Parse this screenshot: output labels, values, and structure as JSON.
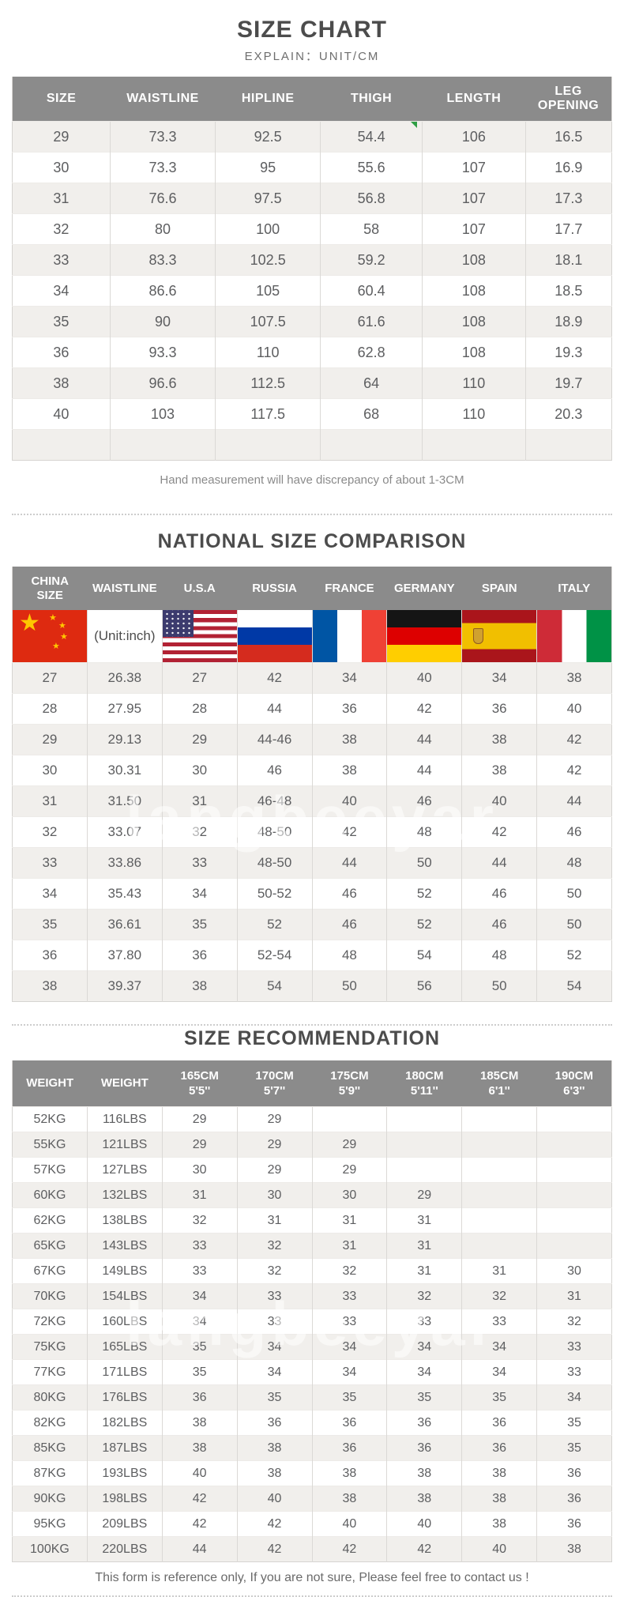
{
  "colors": {
    "header_bg": "#8b8b8b",
    "row_alt": "#f1efec",
    "marker_green": "#2f9e44",
    "title_text": "#4c4c4c"
  },
  "watermark": "langbeeyar",
  "section1": {
    "title": "SIZE CHART",
    "subtitle": "EXPLAIN：UNIT/CM",
    "columns": [
      "SIZE",
      "WAISTLINE",
      "HIPLINE",
      "THIGH",
      "LENGTH",
      "LEG OPENING"
    ],
    "rows": [
      [
        "29",
        "73.3",
        "92.5",
        "54.4",
        "106",
        "16.5"
      ],
      [
        "30",
        "73.3",
        "95",
        "55.6",
        "107",
        "16.9"
      ],
      [
        "31",
        "76.6",
        "97.5",
        "56.8",
        "107",
        "17.3"
      ],
      [
        "32",
        "80",
        "100",
        "58",
        "107",
        "17.7"
      ],
      [
        "33",
        "83.3",
        "102.5",
        "59.2",
        "108",
        "18.1"
      ],
      [
        "34",
        "86.6",
        "105",
        "60.4",
        "108",
        "18.5"
      ],
      [
        "35",
        "90",
        "107.5",
        "61.6",
        "108",
        "18.9"
      ],
      [
        "36",
        "93.3",
        "110",
        "62.8",
        "108",
        "19.3"
      ],
      [
        "38",
        "96.6",
        "112.5",
        "64",
        "110",
        "19.7"
      ],
      [
        "40",
        "103",
        "117.5",
        "68",
        "110",
        "20.3"
      ],
      [
        "",
        "",
        "",
        "",
        "",
        ""
      ]
    ],
    "marker_cell": {
      "row": 0,
      "col": 3
    },
    "footnote": "Hand measurement will have discrepancy of about 1-3CM"
  },
  "section2": {
    "title": "NATIONAL SIZE COMPARISON",
    "columns": [
      "CHINA\nSIZE",
      "WAISTLINE",
      "U.S.A",
      "RUSSIA",
      "FRANCE",
      "GERMANY",
      "SPAIN",
      "ITALY"
    ],
    "flag_row": {
      "unit_label": "(Unit:inch)",
      "cells": [
        "flag-china",
        "unit-label",
        "flag-usa",
        "flag-russia",
        "flag-france",
        "flag-germany",
        "flag-spain",
        "flag-italy"
      ]
    },
    "rows": [
      [
        "27",
        "26.38",
        "27",
        "42",
        "34",
        "40",
        "34",
        "38"
      ],
      [
        "28",
        "27.95",
        "28",
        "44",
        "36",
        "42",
        "36",
        "40"
      ],
      [
        "29",
        "29.13",
        "29",
        "44-46",
        "38",
        "44",
        "38",
        "42"
      ],
      [
        "30",
        "30.31",
        "30",
        "46",
        "38",
        "44",
        "38",
        "42"
      ],
      [
        "31",
        "31.50",
        "31",
        "46-48",
        "40",
        "46",
        "40",
        "44"
      ],
      [
        "32",
        "33.07",
        "32",
        "48-50",
        "42",
        "48",
        "42",
        "46"
      ],
      [
        "33",
        "33.86",
        "33",
        "48-50",
        "44",
        "50",
        "44",
        "48"
      ],
      [
        "34",
        "35.43",
        "34",
        "50-52",
        "46",
        "52",
        "46",
        "50"
      ],
      [
        "35",
        "36.61",
        "35",
        "52",
        "46",
        "52",
        "46",
        "50"
      ],
      [
        "36",
        "37.80",
        "36",
        "52-54",
        "48",
        "54",
        "48",
        "52"
      ],
      [
        "38",
        "39.37",
        "38",
        "54",
        "50",
        "56",
        "50",
        "54"
      ]
    ]
  },
  "section3": {
    "title": "SIZE RECOMMENDATION",
    "columns": [
      "WEIGHT",
      "WEIGHT",
      "165CM\n5'5''",
      "170CM\n5'7''",
      "175CM\n5'9''",
      "180CM\n5'11''",
      "185CM\n6'1''",
      "190CM\n6'3''"
    ],
    "rows": [
      [
        "52KG",
        "116LBS",
        "29",
        "29",
        "",
        "",
        "",
        ""
      ],
      [
        "55KG",
        "121LBS",
        "29",
        "29",
        "29",
        "",
        "",
        ""
      ],
      [
        "57KG",
        "127LBS",
        "30",
        "29",
        "29",
        "",
        "",
        ""
      ],
      [
        "60KG",
        "132LBS",
        "31",
        "30",
        "30",
        "29",
        "",
        ""
      ],
      [
        "62KG",
        "138LBS",
        "32",
        "31",
        "31",
        "31",
        "",
        ""
      ],
      [
        "65KG",
        "143LBS",
        "33",
        "32",
        "31",
        "31",
        "",
        ""
      ],
      [
        "67KG",
        "149LBS",
        "33",
        "32",
        "32",
        "31",
        "31",
        "30"
      ],
      [
        "70KG",
        "154LBS",
        "34",
        "33",
        "33",
        "32",
        "32",
        "31"
      ],
      [
        "72KG",
        "160LBS",
        "34",
        "33",
        "33",
        "33",
        "33",
        "32"
      ],
      [
        "75KG",
        "165LBS",
        "35",
        "34",
        "34",
        "34",
        "34",
        "33"
      ],
      [
        "77KG",
        "171LBS",
        "35",
        "34",
        "34",
        "34",
        "34",
        "33"
      ],
      [
        "80KG",
        "176LBS",
        "36",
        "35",
        "35",
        "35",
        "35",
        "34"
      ],
      [
        "82KG",
        "182LBS",
        "38",
        "36",
        "36",
        "36",
        "36",
        "35"
      ],
      [
        "85KG",
        "187LBS",
        "38",
        "38",
        "36",
        "36",
        "36",
        "35"
      ],
      [
        "87KG",
        "193LBS",
        "40",
        "38",
        "38",
        "38",
        "38",
        "36"
      ],
      [
        "90KG",
        "198LBS",
        "42",
        "40",
        "38",
        "38",
        "38",
        "36"
      ],
      [
        "95KG",
        "209LBS",
        "42",
        "42",
        "40",
        "40",
        "38",
        "36"
      ],
      [
        "100KG",
        "220LBS",
        "44",
        "42",
        "42",
        "42",
        "40",
        "38"
      ]
    ],
    "footnote": "This form is reference only, If you are not sure, Please feel free to contact us !"
  }
}
